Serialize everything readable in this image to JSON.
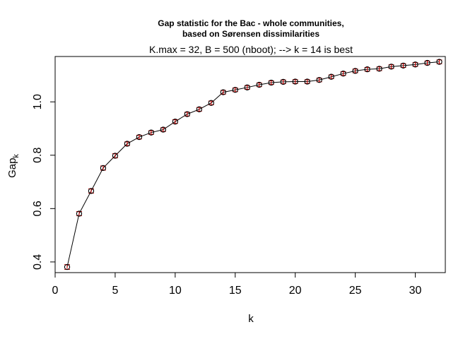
{
  "chart_data": {
    "type": "scatter",
    "title_line1": "Gap statistic for the Bac - whole communities,",
    "title_line2": "based on Sørensen dissimilarities",
    "subtitle": "K.max = 32, B = 500 (nboot); --> k = 14 is best",
    "xlabel": "k",
    "ylabel_main": "Gap",
    "ylabel_sub": "k",
    "xlim": [
      0,
      32.5
    ],
    "ylim": [
      0.36,
      1.17
    ],
    "x_ticks": [
      0,
      5,
      10,
      15,
      20,
      25,
      30
    ],
    "y_ticks": [
      0.4,
      0.6,
      0.8,
      1.0
    ],
    "grid": false,
    "point_color": "#000000",
    "errorbar_color": "#cc0000",
    "line_color": "#000000",
    "series": [
      {
        "x": [
          1,
          2,
          3,
          4,
          5,
          6,
          7,
          8,
          9,
          10,
          11,
          12,
          13,
          14,
          15,
          16,
          17,
          18,
          19,
          20,
          21,
          22,
          23,
          24,
          25,
          26,
          27,
          28,
          29,
          30,
          31,
          32
        ],
        "y": [
          0.381,
          0.581,
          0.666,
          0.752,
          0.798,
          0.843,
          0.868,
          0.885,
          0.896,
          0.926,
          0.954,
          0.972,
          0.996,
          1.036,
          1.045,
          1.054,
          1.064,
          1.072,
          1.075,
          1.076,
          1.076,
          1.082,
          1.094,
          1.106,
          1.116,
          1.122,
          1.124,
          1.132,
          1.136,
          1.14,
          1.146,
          1.15
        ],
        "se": [
          0.009,
          0.008,
          0.008,
          0.008,
          0.008,
          0.007,
          0.007,
          0.007,
          0.007,
          0.007,
          0.007,
          0.007,
          0.007,
          0.007,
          0.007,
          0.007,
          0.007,
          0.007,
          0.007,
          0.007,
          0.007,
          0.007,
          0.007,
          0.007,
          0.007,
          0.007,
          0.007,
          0.007,
          0.007,
          0.007,
          0.007,
          0.007
        ]
      }
    ]
  }
}
